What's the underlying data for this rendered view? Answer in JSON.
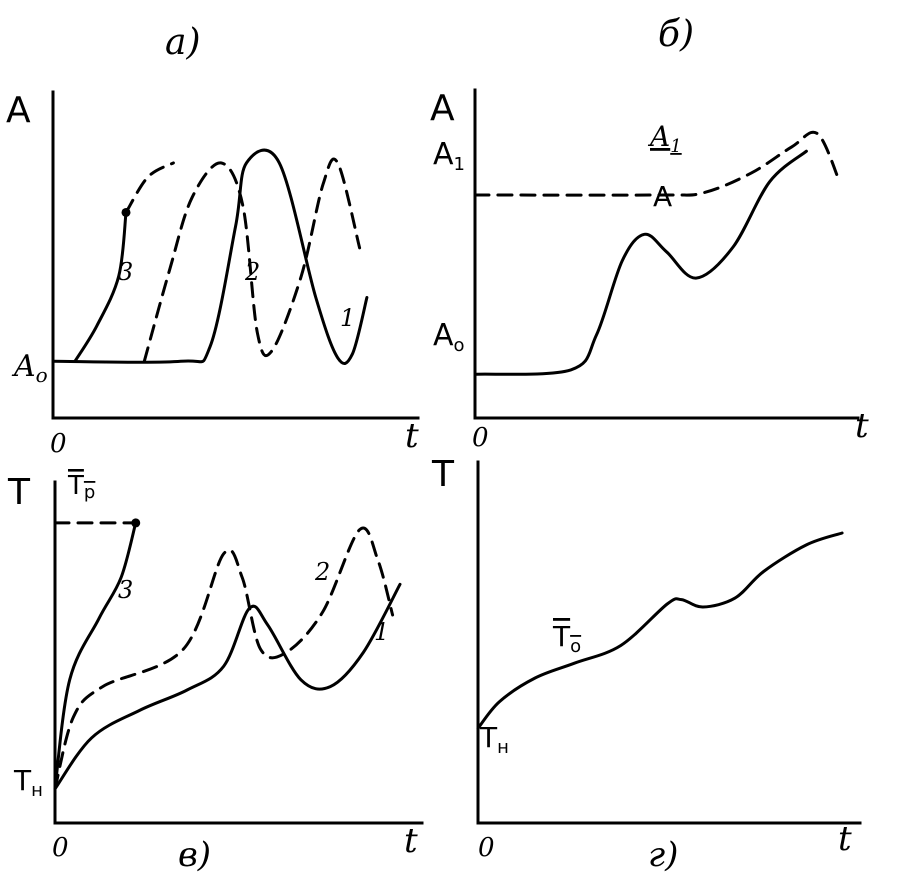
{
  "panels": {
    "a": {
      "caption": "а)",
      "y_axis_label": "A",
      "x_axis_label": "t",
      "origin_label": "0",
      "y_tick_label": "A",
      "y_tick_sub": "о",
      "curve_labels": [
        "3",
        "2",
        "1"
      ]
    },
    "b": {
      "caption": "б)",
      "y_axis_label": "A",
      "x_axis_label": "t",
      "origin_label": "0",
      "tick_A1": "A",
      "tick_A1_sub": "1",
      "tick_A0": "A",
      "tick_A0_sub": "о",
      "curve_label_A1": "A",
      "curve_label_A1_sub": "1",
      "curve_label_A": "A"
    },
    "c": {
      "caption": "в)",
      "y_axis_label": "T",
      "x_axis_label": "t",
      "origin_label": "0",
      "tick_Tr": "T",
      "tick_Tr_sub": "р",
      "tick_Tn": "T",
      "tick_Tn_sub": "н",
      "curve_labels": [
        "3",
        "2",
        "1"
      ]
    },
    "d": {
      "caption": "г)",
      "y_axis_label": "T",
      "x_axis_label": "t",
      "origin_label": "0",
      "curve_label": "T",
      "curve_label_sub": "о",
      "start_label": "T",
      "start_label_sub": "н"
    }
  },
  "chart_data": [
    {
      "panel": "a",
      "type": "line",
      "series": [
        {
          "name": "1",
          "style": "solid",
          "x": [
            0,
            3.5,
            4.3,
            5.0,
            5.3,
            6.2,
            7.2,
            7.8,
            8.2,
            8.6
          ],
          "y": [
            0,
            0,
            0.2,
            1.9,
            2.8,
            2.8,
            0.9,
            0.05,
            0.1,
            0.9
          ]
        },
        {
          "name": "2",
          "style": "dashed",
          "x": [
            2.5,
            3.2,
            3.8,
            4.6,
            5.2,
            5.6,
            6.0,
            6.8,
            7.4,
            7.8,
            8.4
          ],
          "y": [
            0,
            1.3,
            2.3,
            2.8,
            2.2,
            0.4,
            0.15,
            1.2,
            2.5,
            2.8,
            1.6
          ]
        },
        {
          "name": "3",
          "style": "solid",
          "x": [
            0.6,
            1.2,
            1.8,
            2.0
          ],
          "y": [
            0,
            0.5,
            1.2,
            2.1
          ],
          "end_marker": true
        },
        {
          "name": "3",
          "style": "dashed",
          "x": [
            2.0,
            2.6,
            3.3
          ],
          "y": [
            2.1,
            2.6,
            2.8
          ]
        }
      ],
      "xlabel": "t",
      "ylabel": "A",
      "ylim": [
        -0.8,
        3.8
      ],
      "xlim": [
        0,
        10
      ]
    },
    {
      "panel": "b",
      "type": "line",
      "series": [
        {
          "name": "A",
          "style": "solid",
          "x": [
            0,
            2.6,
            3.3,
            4.0,
            4.6,
            5.2,
            6.0,
            7.0,
            8.0,
            9.0
          ],
          "y": [
            0,
            0.1,
            0.9,
            2.6,
            3.2,
            2.8,
            2.2,
            2.9,
            4.4,
            5.1
          ]
        },
        {
          "name": "A1",
          "style": "dashed",
          "x": [
            0,
            5.0,
            6.2,
            7.5,
            8.6,
            9.3,
            9.9
          ],
          "y": [
            4.1,
            4.1,
            4.15,
            4.6,
            5.2,
            5.5,
            4.4
          ]
        }
      ],
      "xlabel": "t",
      "ylabel": "A",
      "ylim": [
        -1.0,
        6.5
      ],
      "xlim": [
        0,
        10.4
      ]
    },
    {
      "panel": "c",
      "type": "line",
      "series": [
        {
          "name": "1",
          "style": "solid",
          "x": [
            0,
            1.0,
            2.3,
            3.6,
            4.6,
            5.3,
            5.8,
            6.7,
            7.5,
            8.4,
            9.4
          ],
          "y": [
            0,
            1.5,
            2.3,
            2.9,
            3.6,
            5.3,
            4.8,
            3.2,
            3.0,
            4.0,
            6.0
          ]
        },
        {
          "name": "2",
          "style": "dashed",
          "x": [
            0,
            0.5,
            1.3,
            3.5,
            4.6,
            5.1,
            5.6,
            6.3,
            7.3,
            8.3,
            8.8,
            9.2
          ],
          "y": [
            0,
            2.1,
            3.0,
            4.1,
            6.9,
            6.2,
            4.1,
            4.0,
            5.2,
            7.6,
            6.7,
            5.1
          ]
        },
        {
          "name": "3",
          "style": "solid",
          "x": [
            0,
            0.4,
            1.2,
            1.8,
            2.2
          ],
          "y": [
            0,
            3.2,
            5.0,
            6.2,
            7.8
          ],
          "end_marker": true
        }
      ],
      "reference_lines": [
        {
          "label": "Tр",
          "y": 7.8,
          "style": "dashed"
        }
      ],
      "xlabel": "t",
      "ylabel": "T",
      "ylim": [
        -1.0,
        9.0
      ],
      "xlim": [
        0,
        10
      ]
    },
    {
      "panel": "d",
      "type": "line",
      "series": [
        {
          "name": "T",
          "style": "solid",
          "x": [
            0,
            0.6,
            1.6,
            2.7,
            4.0,
            5.3,
            5.7,
            6.3,
            7.2,
            8.0,
            9.2,
            10.2
          ],
          "y": [
            0,
            0.9,
            1.7,
            2.2,
            2.8,
            4.2,
            4.35,
            4.1,
            4.4,
            5.3,
            6.2,
            6.6
          ]
        }
      ],
      "xlabel": "t",
      "ylabel": "T",
      "ylim": [
        -3.2,
        9.0
      ],
      "xlim": [
        0,
        10.7
      ]
    }
  ]
}
